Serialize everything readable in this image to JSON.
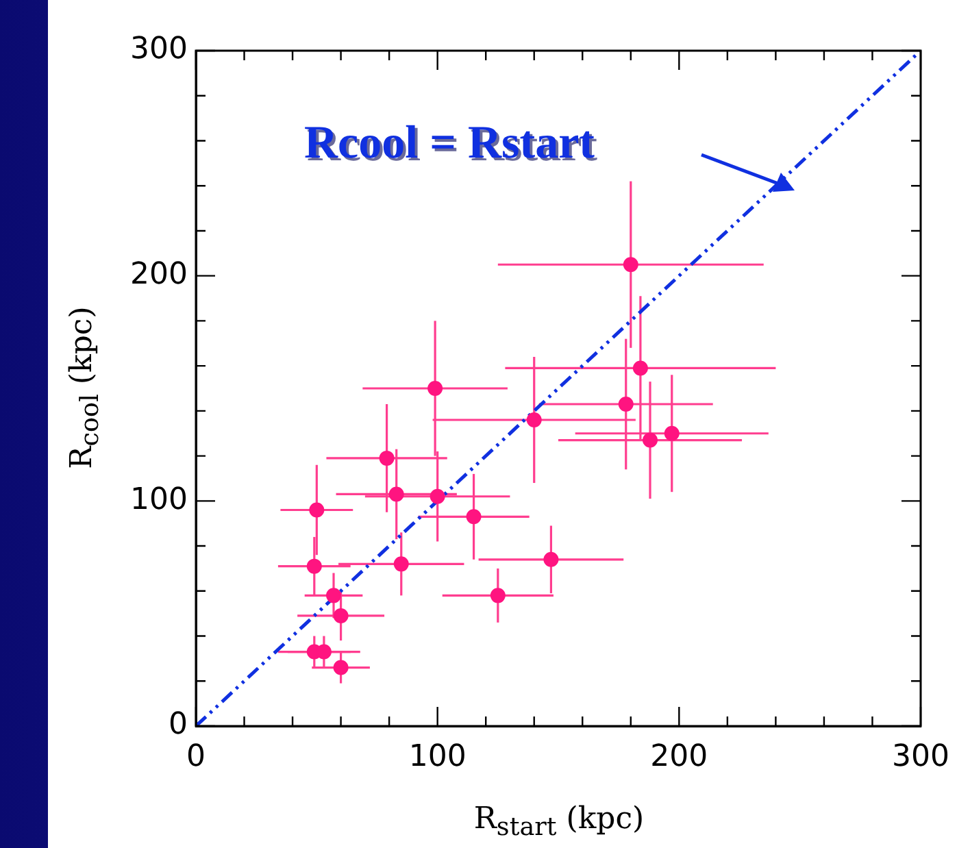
{
  "chart_data": {
    "type": "scatter",
    "xlabel": "R$_{start}$ (kpc)",
    "ylabel": "R$_{cool}$ (kpc)",
    "xlim": [
      0,
      300
    ],
    "ylim": [
      0,
      300
    ],
    "xticks": [
      0,
      {
        "value": 20,
        "label": null
      },
      {
        "value": 40,
        "label": null
      },
      {
        "value": 60,
        "label": null
      },
      {
        "value": 80,
        "label": null
      },
      100,
      {
        "value": 120,
        "label": null
      },
      {
        "value": 140,
        "label": null
      },
      {
        "value": 160,
        "label": null
      },
      {
        "value": 180,
        "label": null
      },
      200,
      {
        "value": 220,
        "label": null
      },
      {
        "value": 240,
        "label": null
      },
      {
        "value": 260,
        "label": null
      },
      {
        "value": 280,
        "label": null
      },
      300
    ],
    "yticks": [
      0,
      {
        "value": 20,
        "label": null
      },
      {
        "value": 40,
        "label": null
      },
      {
        "value": 60,
        "label": null
      },
      {
        "value": 80,
        "label": null
      },
      100,
      {
        "value": 120,
        "label": null
      },
      {
        "value": 140,
        "label": null
      },
      {
        "value": 160,
        "label": null
      },
      {
        "value": 180,
        "label": null
      },
      200,
      {
        "value": 220,
        "label": null
      },
      {
        "value": 240,
        "label": null
      },
      {
        "value": 260,
        "label": null
      },
      {
        "value": 280,
        "label": null
      },
      300
    ],
    "grid": false,
    "legend": false,
    "marker": "circle",
    "series": [
      {
        "type": "scatter",
        "color": "#ff1480",
        "x": [
          50,
          49,
          57,
          60,
          49,
          53,
          60,
          79,
          83,
          100,
          99,
          85,
          115,
          125,
          147,
          140,
          180,
          184,
          178,
          188,
          197
        ],
        "values": [
          96,
          71,
          58,
          49,
          33,
          33,
          26,
          119,
          103,
          102,
          150,
          72,
          93,
          58,
          74,
          136,
          205,
          159,
          143,
          127,
          130
        ],
        "xerrors": [
          15,
          15,
          12,
          18,
          15,
          15,
          12,
          25,
          25,
          30,
          30,
          26,
          23,
          23,
          30,
          42,
          55,
          56,
          36,
          38,
          40
        ],
        "errors": [
          20,
          13,
          10,
          11,
          7,
          7,
          7,
          24,
          20,
          20,
          30,
          14,
          19,
          12,
          15,
          28,
          37,
          32,
          29,
          26,
          26
        ]
      },
      {
        "type": "line",
        "color": "#1030e0",
        "line_style": "dashed",
        "marker": "none",
        "x": [
          0,
          300
        ],
        "values": [
          0,
          300
        ]
      }
    ],
    "annotations": [
      "Rcool = Rstart"
    ]
  }
}
